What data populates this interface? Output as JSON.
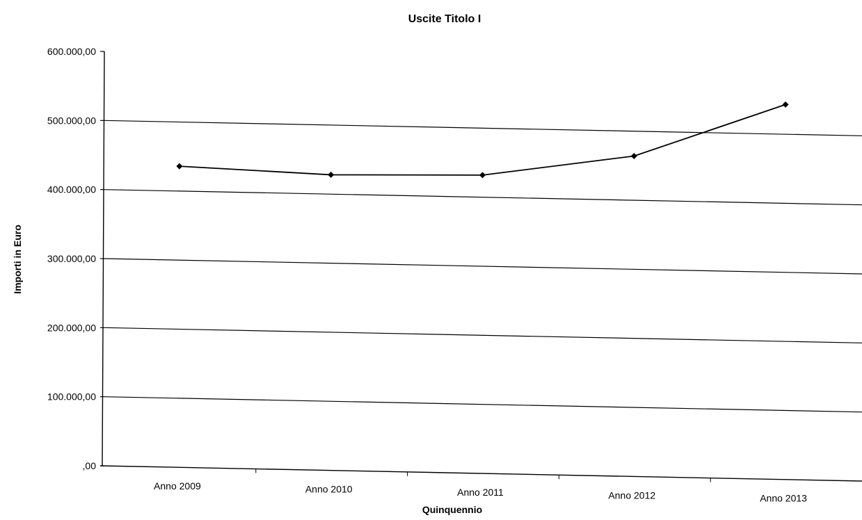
{
  "chart_data": {
    "type": "line",
    "title": "Uscite Titolo I",
    "xlabel": "Quinquennio",
    "ylabel": "Importi in Euro",
    "categories": [
      "Anno 2009",
      "Anno 2010",
      "Anno 2011",
      "Anno 2012",
      "Anno 2013"
    ],
    "series": [
      {
        "values": [
          436000,
          428000,
          432000,
          464000,
          543000
        ]
      }
    ],
    "yticks": [
      0,
      100000,
      200000,
      300000,
      400000,
      500000,
      600000
    ],
    "ytick_labels": [
      ",00",
      "100.000,00",
      "200.000,00",
      "300.000,00",
      "400.000,00",
      "500.000,00",
      "600.000,00"
    ],
    "ylim": [
      0,
      600000
    ],
    "grid": true,
    "legend": "none",
    "colors": {
      "line": "#000000",
      "grid": "#000000",
      "background": "#ffffff"
    }
  }
}
